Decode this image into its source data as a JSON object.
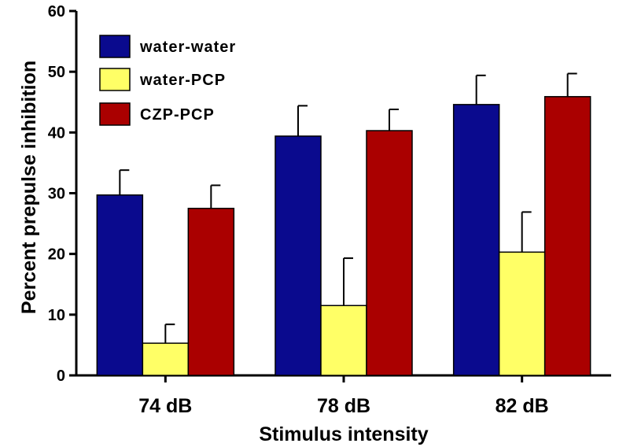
{
  "chart_data": {
    "type": "bar",
    "categories": [
      "74 dB",
      "78 dB",
      "82 dB"
    ],
    "series": [
      {
        "name": "water-water",
        "color": "#0a0a8e",
        "values": [
          29.7,
          39.4,
          44.6
        ],
        "errors": [
          4.1,
          5.0,
          4.8
        ]
      },
      {
        "name": "water-PCP",
        "color": "#ffff66",
        "values": [
          5.3,
          11.5,
          20.3
        ],
        "errors": [
          3.1,
          7.8,
          6.6
        ]
      },
      {
        "name": "CZP-PCP",
        "color": "#aa0000",
        "values": [
          27.5,
          40.3,
          45.9
        ],
        "errors": [
          3.8,
          3.5,
          3.8
        ]
      }
    ],
    "xlabel": "Stimulus intensity",
    "ylabel": "Percent prepulse inhibition",
    "ylim": [
      0,
      60
    ],
    "yticks": [
      "0",
      "10",
      "20",
      "30",
      "40",
      "50",
      "60"
    ],
    "grid": false,
    "legend_position": "top-left"
  }
}
